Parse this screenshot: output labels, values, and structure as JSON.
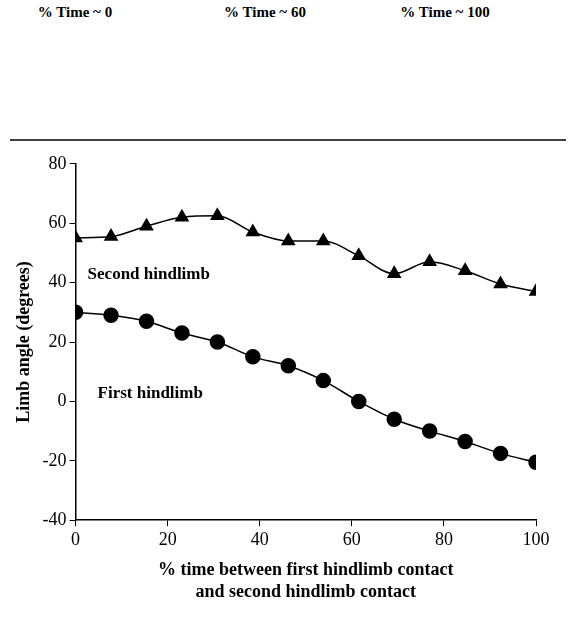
{
  "chart_data": {
    "type": "line",
    "annotations": [
      "% Time ~ 0",
      "% Time ~ 60",
      "% Time ~ 100"
    ],
    "x_label": [
      "% time between first hindlimb contact",
      "and second hindlimb contact"
    ],
    "y_label": "Limb angle (degrees)",
    "x": [
      0,
      7.7,
      15.4,
      23.1,
      30.8,
      38.5,
      46.2,
      53.8,
      61.5,
      69.2,
      76.9,
      84.6,
      92.3,
      100
    ],
    "series": [
      {
        "name": "Second hindlimb",
        "color": "#000000",
        "marker": "triangle",
        "values": [
          55,
          55.5,
          59,
          62,
          62.5,
          57,
          54,
          54,
          49,
          43,
          47,
          44,
          39.5,
          37
        ]
      },
      {
        "name": "First hindlimb",
        "color": "#000000",
        "marker": "circle",
        "values": [
          30,
          29,
          27,
          23,
          20,
          15,
          12,
          7,
          0,
          -6,
          -10,
          -13.5,
          -17.5,
          -20.5
        ]
      }
    ],
    "xlim": [
      0,
      100
    ],
    "xticks": [
      0,
      20,
      40,
      60,
      80,
      100
    ],
    "ylim": [
      -40,
      80
    ],
    "yticks": [
      -40,
      -20,
      0,
      20,
      40,
      60,
      80
    ],
    "grid": false
  }
}
